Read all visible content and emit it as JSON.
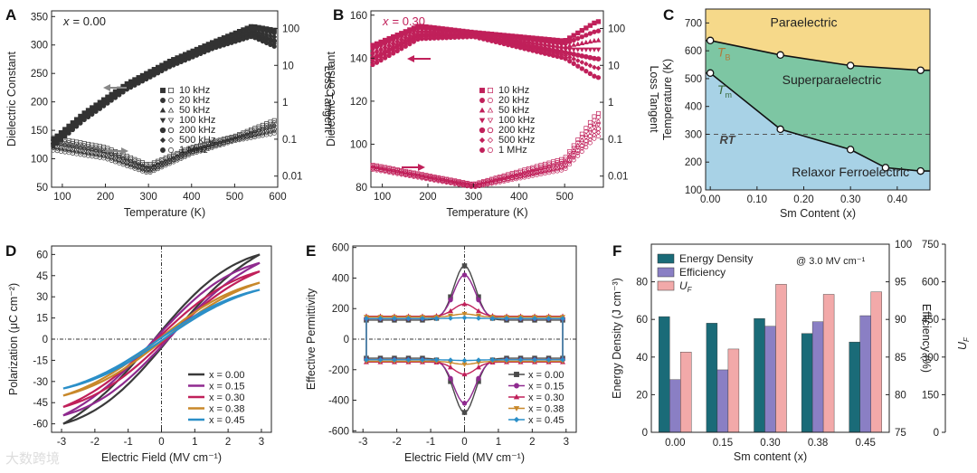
{
  "panels": {
    "A": {
      "label": "A",
      "note_var": "x",
      "note_val": "= 0.00"
    },
    "B": {
      "label": "B",
      "note_var": "x",
      "note_val": "= 0.30"
    },
    "C": {
      "label": "C"
    },
    "D": {
      "label": "D"
    },
    "E": {
      "label": "E"
    },
    "F": {
      "label": "F"
    }
  },
  "chart_data": [
    {
      "id": "A",
      "type": "scatter",
      "xlabel": "Temperature (K)",
      "ylabel": "Dielectric Constant",
      "y2label": "Loss Tangent",
      "xlim": [
        75,
        600
      ],
      "ylim": [
        50,
        360
      ],
      "y2lim_log": [
        0.005,
        300
      ],
      "xticks": [
        100,
        200,
        300,
        400,
        500,
        600
      ],
      "yticks": [
        50,
        100,
        150,
        200,
        250,
        300,
        350
      ],
      "y2ticks": [
        "100",
        "10",
        "1",
        "0.1",
        "0.01"
      ],
      "legend": [
        "10 kHz",
        "20 kHz",
        "50 kHz",
        "100 kHz",
        "200 kHz",
        "500 kHz",
        "1 MHz"
      ],
      "series": [
        {
          "frequency_index": 0,
          "permittivity": [
            [
              80,
              135
            ],
            [
              150,
              180
            ],
            [
              250,
              232
            ],
            [
              350,
              272
            ],
            [
              450,
              305
            ],
            [
              540,
              333
            ],
            [
              600,
              325
            ]
          ],
          "loss": [
            [
              80,
              0.11
            ],
            [
              200,
              0.06
            ],
            [
              300,
              0.02
            ],
            [
              400,
              0.06
            ],
            [
              500,
              0.12
            ],
            [
              600,
              0.35
            ]
          ]
        },
        {
          "frequency_index": 6,
          "permittivity": [
            [
              80,
              122
            ],
            [
              150,
              168
            ],
            [
              250,
              222
            ],
            [
              350,
              262
            ],
            [
              450,
              294
            ],
            [
              540,
              315
            ],
            [
              600,
              295
            ]
          ],
          "loss": [
            [
              80,
              0.05
            ],
            [
              200,
              0.03
            ],
            [
              300,
              0.012
            ],
            [
              400,
              0.04
            ],
            [
              500,
              0.09
            ],
            [
              600,
              0.15
            ]
          ]
        }
      ]
    },
    {
      "id": "B",
      "type": "scatter",
      "xlabel": "Temperature (K)",
      "ylabel": "Dielectric Constant",
      "y2label": "Loss Tangent",
      "xlim": [
        75,
        585
      ],
      "ylim": [
        80,
        162
      ],
      "y2lim_log": [
        0.005,
        300
      ],
      "xticks": [
        100,
        200,
        300,
        400,
        500
      ],
      "yticks": [
        80,
        100,
        120,
        140,
        160
      ],
      "y2ticks": [
        "100",
        "10",
        "1",
        "0.1",
        "0.01"
      ],
      "legend": [
        "10 kHz",
        "20 kHz",
        "50 kHz",
        "100 kHz",
        "200 kHz",
        "500 kHz",
        "1 MHz"
      ],
      "series": [
        {
          "frequency_index": 0,
          "permittivity": [
            [
              80,
              146
            ],
            [
              180,
              155
            ],
            [
              300,
              152
            ],
            [
              400,
              150
            ],
            [
              500,
              148
            ],
            [
              570,
              157
            ]
          ],
          "loss": [
            [
              80,
              0.02
            ],
            [
              300,
              0.006
            ],
            [
              500,
              0.03
            ],
            [
              570,
              0.5
            ]
          ]
        },
        {
          "frequency_index": 6,
          "permittivity": [
            [
              80,
              137
            ],
            [
              180,
              149
            ],
            [
              300,
              150
            ],
            [
              400,
              145
            ],
            [
              500,
              140
            ],
            [
              570,
              131
            ]
          ],
          "loss": [
            [
              80,
              0.015
            ],
            [
              300,
              0.005
            ],
            [
              500,
              0.015
            ],
            [
              570,
              0.12
            ]
          ]
        }
      ]
    },
    {
      "id": "C",
      "type": "phase_diagram",
      "xlabel": "Sm Content (x)",
      "ylabel": "Temperature (K)",
      "xlim": [
        -0.01,
        0.47
      ],
      "ylim": [
        100,
        750
      ],
      "xticks": [
        "0.00",
        "0.10",
        "0.20",
        "0.30",
        "0.40"
      ],
      "yticks": [
        100,
        200,
        300,
        400,
        500,
        600,
        700
      ],
      "TB": [
        [
          0.0,
          637
        ],
        [
          0.15,
          585
        ],
        [
          0.3,
          547
        ],
        [
          0.45,
          530
        ]
      ],
      "Tm": [
        [
          0.0,
          520
        ],
        [
          0.15,
          318
        ],
        [
          0.3,
          245
        ],
        [
          0.375,
          180
        ],
        [
          0.45,
          168
        ]
      ],
      "RT": 300,
      "regions": [
        "Paraelectric",
        "Superparaelectric",
        "Relaxor Ferroelectric"
      ],
      "curve_labels": {
        "TB": {
          "main": "T",
          "sub": "B"
        },
        "Tm": {
          "main": "T",
          "sub": "m"
        },
        "RT": "RT"
      },
      "colors": {
        "paraelectric": "#f6d98a",
        "superparaelectric": "#7dc6a3",
        "relaxor": "#a8d2e6"
      }
    },
    {
      "id": "D",
      "type": "line",
      "xlabel": "Electric Field (MV cm⁻¹)",
      "ylabel": "Polarization (μC cm⁻²)",
      "xlim": [
        -3.3,
        3.3
      ],
      "ylim": [
        -66,
        66
      ],
      "xticks": [
        -3,
        -2,
        -1,
        0,
        1,
        2,
        3
      ],
      "yticks": [
        -60,
        -45,
        -30,
        -15,
        0,
        15,
        30,
        45,
        60
      ],
      "series": [
        {
          "name": "x = 0.00",
          "color": "#3a3a3a",
          "Pmax": 60,
          "width": 6
        },
        {
          "name": "x = 0.15",
          "color": "#8f2a8f",
          "Pmax": 54,
          "width": 5
        },
        {
          "name": "x = 0.30",
          "color": "#c0205a",
          "Pmax": 48,
          "width": 3
        },
        {
          "name": "x = 0.38",
          "color": "#c8882a",
          "Pmax": 40,
          "width": 1.5
        },
        {
          "name": "x = 0.45",
          "color": "#2b8fc8",
          "Pmax": 35,
          "width": 1
        }
      ]
    },
    {
      "id": "E",
      "type": "line",
      "xlabel": "Electric Field (MV cm⁻¹)",
      "ylabel": "Effective Permittivity",
      "xlim": [
        -3.3,
        3.3
      ],
      "ylim": [
        -610,
        610
      ],
      "xticks": [
        -3,
        -2,
        -1,
        0,
        1,
        2,
        3
      ],
      "yticks": [
        -600,
        -400,
        -200,
        0,
        200,
        400,
        600
      ],
      "series": [
        {
          "name": "x = 0.00",
          "color": "#4a4a4a",
          "marker": "square",
          "base": 125,
          "peak": 480
        },
        {
          "name": "x = 0.15",
          "color": "#8f2a8f",
          "marker": "circle",
          "base": 135,
          "peak": 420
        },
        {
          "name": "x = 0.30",
          "color": "#c0205a",
          "marker": "triangle",
          "base": 150,
          "peak": 230
        },
        {
          "name": "x = 0.38",
          "color": "#c8882a",
          "marker": "triangle-down",
          "base": 145,
          "peak": 165
        },
        {
          "name": "x = 0.45",
          "color": "#2b8fc8",
          "marker": "diamond",
          "base": 135,
          "peak": 140
        }
      ]
    },
    {
      "id": "F",
      "type": "bar",
      "xlabel": "Sm content (x)",
      "ylabel": "Energy Density (J cm⁻³)",
      "y2label": "Efficiency (%)",
      "y3label": "U",
      "categories": [
        "0.00",
        "0.15",
        "0.30",
        "0.38",
        "0.45"
      ],
      "ylim": [
        0,
        100
      ],
      "y2lim": [
        75,
        100
      ],
      "y3lim": [
        0,
        750
      ],
      "yticks": [
        0,
        20,
        40,
        60,
        80
      ],
      "y2ticks": [
        75,
        80,
        85,
        90,
        95,
        100
      ],
      "y3ticks": [
        0,
        150,
        300,
        450,
        600,
        750
      ],
      "annotation": "@ 3.0 MV cm⁻¹",
      "series": [
        {
          "name": "Energy Density",
          "color": "#1a6b78",
          "values": [
            61.5,
            58,
            60.5,
            52.5,
            48
          ]
        },
        {
          "name": "Efficiency",
          "color": "#8a7fc4",
          "values": [
            82,
            83.3,
            89.1,
            89.7,
            90.5
          ]
        },
        {
          "name": "U",
          "sub": "F",
          "color": "#f2a9a9",
          "values": [
            320,
            332,
            590,
            550,
            560
          ]
        }
      ]
    }
  ],
  "watermark": "大数跨境"
}
